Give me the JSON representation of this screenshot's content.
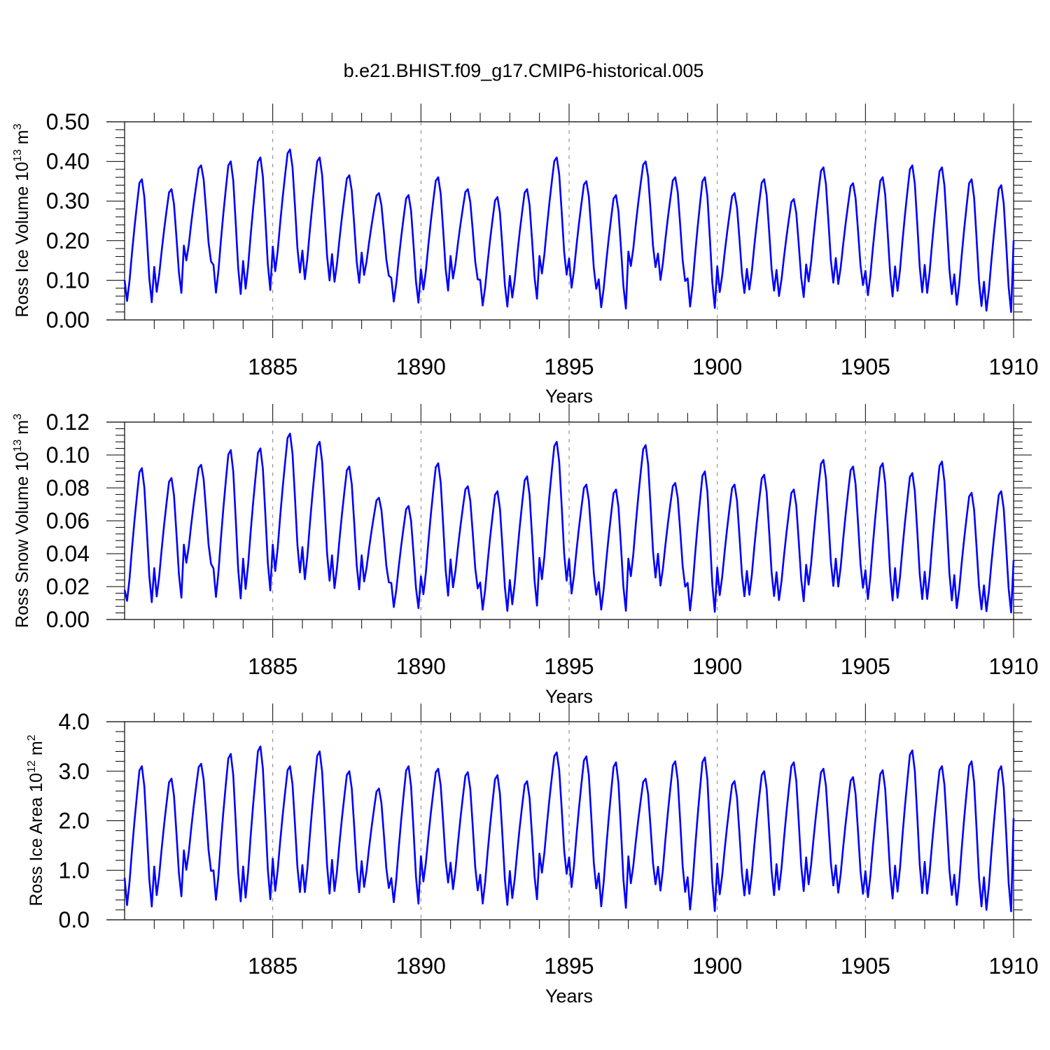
{
  "figure_title": "b.e21.BHIST.f09_g17.CMIP6-historical.005",
  "series_color": "#0000ff",
  "chart_data": [
    {
      "type": "line",
      "title": "b.e21.BHIST.f09_g17.CMIP6-historical.005",
      "ylabel_main": "Ross Ice Volume 10",
      "ylabel_exp": "13",
      "ylabel_unit": " m",
      "ylabel_unit_exp": "3",
      "xlabel": "Years",
      "xlim": [
        1880.0,
        1910.0
      ],
      "ylim": [
        0.0,
        0.5
      ],
      "yticks": [
        "0.00",
        "0.10",
        "0.20",
        "0.30",
        "0.40",
        "0.50"
      ],
      "ytick_values": [
        0.0,
        0.1,
        0.2,
        0.3,
        0.4,
        0.5
      ],
      "xticks": [
        "1885",
        "1890",
        "1895",
        "1900",
        "1905",
        "1910"
      ],
      "xtick_values": [
        1885,
        1890,
        1895,
        1900,
        1905,
        1910
      ],
      "series": [
        {
          "name": "Ross Ice Volume",
          "annual_peaks": [
            0.355,
            0.33,
            0.39,
            0.4,
            0.41,
            0.43,
            0.41,
            0.365,
            0.32,
            0.315,
            0.36,
            0.33,
            0.31,
            0.33,
            0.41,
            0.35,
            0.315,
            0.4,
            0.36,
            0.36,
            0.32,
            0.355,
            0.305,
            0.385,
            0.345,
            0.36,
            0.39,
            0.385,
            0.355,
            0.34
          ],
          "annual_troughs": [
            0.035,
            0.06,
            0.14,
            0.055,
            0.065,
            0.11,
            0.09,
            0.085,
            0.105,
            0.035,
            0.065,
            0.095,
            0.025,
            0.045,
            0.105,
            0.07,
            0.02,
            0.125,
            0.09,
            0.02,
            0.06,
            0.065,
            0.05,
            0.085,
            0.08,
            0.05,
            0.06,
            0.055,
            0.025,
            0.01
          ],
          "start_value": 0.1,
          "end_value": 0.2
        }
      ]
    },
    {
      "type": "line",
      "ylabel_main": "Ross Snow Volume 10",
      "ylabel_exp": "13",
      "ylabel_unit": " m",
      "ylabel_unit_exp": "3",
      "xlabel": "Years",
      "xlim": [
        1880.0,
        1910.0
      ],
      "ylim": [
        0.0,
        0.12
      ],
      "yticks": [
        "0.00",
        "0.02",
        "0.04",
        "0.06",
        "0.08",
        "0.10",
        "0.12"
      ],
      "ytick_values": [
        0.0,
        0.02,
        0.04,
        0.06,
        0.08,
        0.1,
        0.12
      ],
      "xticks": [
        "1885",
        "1890",
        "1895",
        "1900",
        "1905",
        "1910"
      ],
      "xtick_values": [
        1885,
        1890,
        1895,
        1900,
        1905,
        1910
      ],
      "series": [
        {
          "name": "Ross Snow Volume",
          "annual_peaks": [
            0.092,
            0.086,
            0.094,
            0.103,
            0.104,
            0.113,
            0.108,
            0.093,
            0.074,
            0.069,
            0.095,
            0.081,
            0.078,
            0.087,
            0.108,
            0.082,
            0.079,
            0.106,
            0.083,
            0.09,
            0.082,
            0.088,
            0.079,
            0.097,
            0.093,
            0.095,
            0.089,
            0.096,
            0.077,
            0.078
          ],
          "annual_troughs": [
            0.008,
            0.011,
            0.032,
            0.01,
            0.015,
            0.026,
            0.021,
            0.016,
            0.021,
            0.005,
            0.012,
            0.017,
            0.003,
            0.006,
            0.021,
            0.013,
            0.003,
            0.023,
            0.018,
            0.002,
            0.012,
            0.012,
            0.009,
            0.018,
            0.017,
            0.009,
            0.01,
            0.009,
            0.004,
            0.002
          ],
          "start_value": 0.018,
          "end_value": 0.036
        }
      ]
    },
    {
      "type": "line",
      "ylabel_main": "Ross Ice Area 10",
      "ylabel_exp": "12",
      "ylabel_unit": " m",
      "ylabel_unit_exp": "2",
      "xlabel": "Years",
      "xlim": [
        1880.0,
        1910.0
      ],
      "ylim": [
        0.0,
        4.0
      ],
      "yticks": [
        "0.0",
        "1.0",
        "2.0",
        "3.0",
        "4.0"
      ],
      "ytick_values": [
        0.0,
        1.0,
        2.0,
        3.0,
        4.0
      ],
      "xticks": [
        "1885",
        "1890",
        "1895",
        "1900",
        "1905",
        "1910"
      ],
      "xtick_values": [
        1885,
        1890,
        1895,
        1900,
        1905,
        1910
      ],
      "series": [
        {
          "name": "Ross Ice Area",
          "annual_peaks": [
            3.1,
            2.85,
            3.15,
            3.35,
            3.5,
            3.1,
            3.4,
            3.0,
            2.65,
            3.1,
            3.05,
            2.98,
            2.92,
            2.8,
            3.38,
            3.3,
            3.18,
            2.85,
            3.2,
            3.28,
            2.8,
            3.0,
            3.18,
            3.05,
            2.88,
            3.02,
            3.42,
            3.1,
            3.2,
            3.1
          ],
          "annual_troughs": [
            0.18,
            0.4,
            0.92,
            0.28,
            0.32,
            0.48,
            0.44,
            0.48,
            0.58,
            0.24,
            0.68,
            0.52,
            0.22,
            0.34,
            0.85,
            0.55,
            0.15,
            0.65,
            0.48,
            0.08,
            0.42,
            0.42,
            0.5,
            0.62,
            0.45,
            0.35,
            0.45,
            0.42,
            0.18,
            0.08
          ],
          "start_value": 0.85,
          "end_value": 2.05
        }
      ]
    }
  ]
}
